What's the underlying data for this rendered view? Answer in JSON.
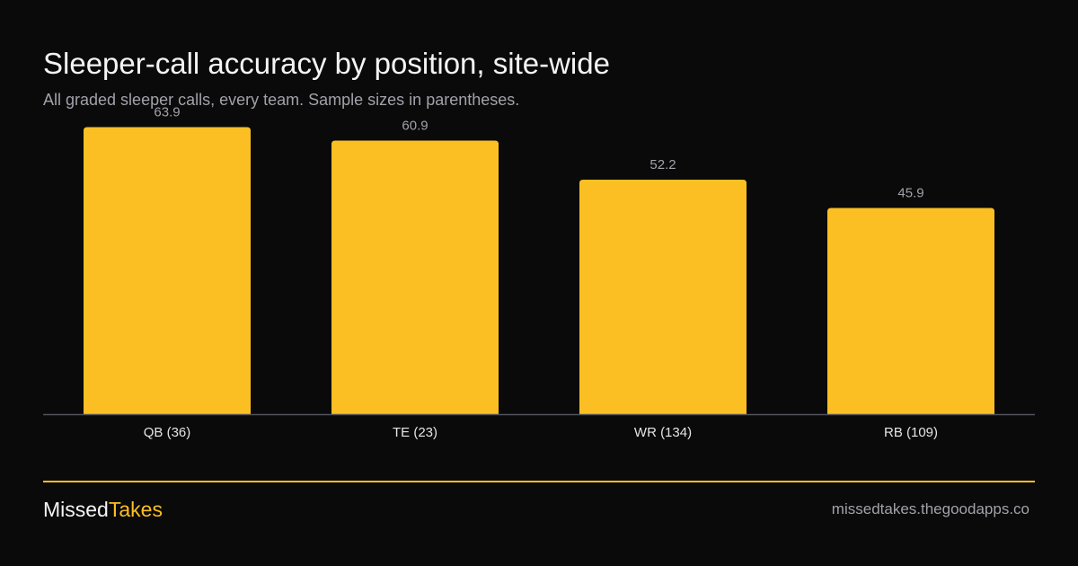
{
  "chart_data": {
    "type": "bar",
    "title": "Sleeper-call accuracy by position, site-wide",
    "subtitle": "All graded sleeper calls, every team. Sample sizes in parentheses.",
    "categories": [
      "QB (36)",
      "TE (23)",
      "WR (134)",
      "RB (109)"
    ],
    "values": [
      63.9,
      60.9,
      52.2,
      45.9
    ],
    "data_labels": [
      "63.9",
      "60.9",
      "52.2",
      "45.9"
    ],
    "ylim": [
      0,
      66
    ],
    "grid": false,
    "legend": "none",
    "colors": {
      "bar": "#fbbf24",
      "value_label": "#a1a1aa",
      "category_label": "#e4e4e7",
      "baseline": "#52525b"
    }
  },
  "footer": {
    "brand_part1": "Missed",
    "brand_part2": "Takes",
    "url": "missedtakes.thegoodapps.co"
  }
}
